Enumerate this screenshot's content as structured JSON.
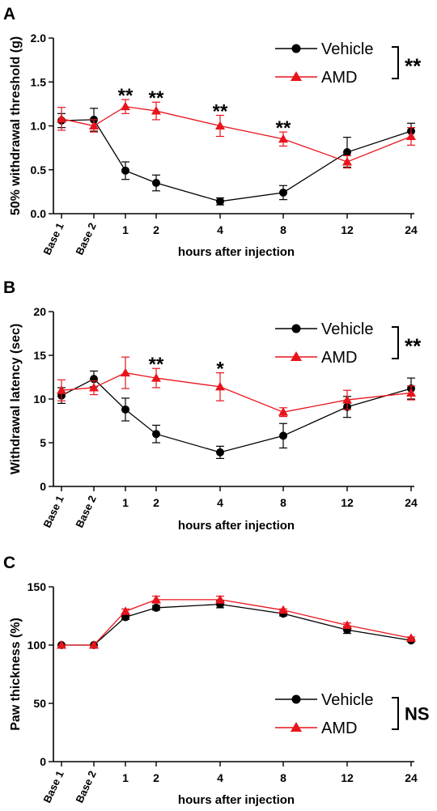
{
  "chart_data": [
    {
      "panel": "A",
      "type": "line",
      "xlabel": "hours after injection",
      "ylabel": "50% withdrawal threshold (g)",
      "categories": [
        "Base 1",
        "Base 2",
        "1",
        "2",
        "4",
        "8",
        "12",
        "24"
      ],
      "ylim": [
        0,
        2.0
      ],
      "yticks": [
        "0.0",
        "0.5",
        "1.0",
        "1.5",
        "2.0"
      ],
      "grid": false,
      "legend_position": "top-right",
      "series": [
        {
          "name": "Vehicle",
          "marker": "circle",
          "color": "#000000",
          "values": [
            1.06,
            1.07,
            0.49,
            0.35,
            0.14,
            0.24,
            0.7,
            0.94
          ],
          "errors": [
            0.08,
            0.13,
            0.1,
            0.09,
            0.04,
            0.08,
            0.17,
            0.09
          ]
        },
        {
          "name": "AMD",
          "marker": "triangle",
          "color": "#e8141c",
          "values": [
            1.08,
            1.0,
            1.22,
            1.17,
            1.0,
            0.85,
            0.59,
            0.88
          ],
          "errors": [
            0.13,
            0.07,
            0.08,
            0.1,
            0.12,
            0.08,
            0.07,
            0.1
          ]
        }
      ],
      "annotations": [
        {
          "category": "1",
          "text": "**"
        },
        {
          "category": "2",
          "text": "**"
        },
        {
          "category": "4",
          "text": "**"
        },
        {
          "category": "8",
          "text": "**"
        }
      ],
      "group_annotation": "**"
    },
    {
      "panel": "B",
      "type": "line",
      "xlabel": "hours after injection",
      "ylabel": "Withdrawal latency (sec)",
      "categories": [
        "Base 1",
        "Base 2",
        "1",
        "2",
        "4",
        "8",
        "12",
        "24"
      ],
      "ylim": [
        0,
        20
      ],
      "yticks": [
        "0",
        "5",
        "10",
        "15",
        "20"
      ],
      "grid": false,
      "legend_position": "top-right",
      "series": [
        {
          "name": "Vehicle",
          "marker": "circle",
          "color": "#000000",
          "values": [
            10.4,
            12.3,
            8.8,
            6.0,
            3.9,
            5.8,
            9.1,
            11.2
          ],
          "errors": [
            0.9,
            0.9,
            1.3,
            1.0,
            0.7,
            1.4,
            1.2,
            1.2
          ]
        },
        {
          "name": "AMD",
          "marker": "triangle",
          "color": "#e8141c",
          "values": [
            11.0,
            11.3,
            13.0,
            12.4,
            11.4,
            8.5,
            9.9,
            10.7
          ],
          "errors": [
            1.2,
            0.8,
            1.8,
            1.1,
            1.6,
            0.5,
            1.1,
            0.8
          ]
        }
      ],
      "annotations": [
        {
          "category": "2",
          "text": "**"
        },
        {
          "category": "4",
          "text": "*"
        }
      ],
      "group_annotation": "**"
    },
    {
      "panel": "C",
      "type": "line",
      "xlabel": "hours after injection",
      "ylabel": "Paw thickness (%)",
      "categories": [
        "Base 1",
        "Base 2",
        "1",
        "2",
        "4",
        "8",
        "12",
        "24"
      ],
      "ylim": [
        0,
        150
      ],
      "yticks": [
        "0",
        "50",
        "100",
        "150"
      ],
      "grid": false,
      "legend_position": "bottom-right",
      "series": [
        {
          "name": "Vehicle",
          "marker": "circle",
          "color": "#000000",
          "values": [
            100,
            100,
            124,
            132,
            135,
            127,
            113,
            104
          ],
          "errors": [
            0,
            0,
            2,
            2,
            3,
            2,
            3,
            1
          ]
        },
        {
          "name": "AMD",
          "marker": "triangle",
          "color": "#e8141c",
          "values": [
            100,
            100,
            129,
            139,
            139,
            130,
            117,
            106
          ],
          "errors": [
            0,
            0,
            2,
            3,
            3,
            1,
            2,
            1
          ]
        }
      ],
      "annotations": [],
      "group_annotation": "NS"
    }
  ]
}
